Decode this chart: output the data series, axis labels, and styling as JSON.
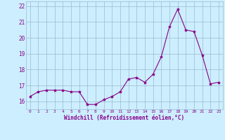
{
  "hours": [
    0,
    1,
    2,
    3,
    4,
    5,
    6,
    7,
    8,
    9,
    10,
    11,
    12,
    13,
    14,
    15,
    16,
    17,
    18,
    19,
    20,
    21,
    22,
    23
  ],
  "values": [
    16.3,
    16.6,
    16.7,
    16.7,
    16.7,
    16.6,
    16.6,
    15.8,
    15.8,
    16.1,
    16.3,
    16.6,
    17.4,
    17.5,
    17.2,
    17.7,
    18.8,
    20.7,
    21.8,
    20.5,
    20.4,
    18.9,
    17.1,
    17.2
  ],
  "ylim": [
    15.5,
    22.3
  ],
  "yticks": [
    16,
    17,
    18,
    19,
    20,
    21,
    22
  ],
  "xtick_labels": [
    "0",
    "1",
    "2",
    "3",
    "4",
    "5",
    "6",
    "7",
    "8",
    "9",
    "10",
    "11",
    "12",
    "13",
    "14",
    "15",
    "16",
    "17",
    "18",
    "19",
    "20",
    "21",
    "22",
    "23"
  ],
  "line_color": "#880088",
  "marker_color": "#880088",
  "bg_color": "#cceeff",
  "grid_color": "#99bbcc",
  "xlabel": "Windchill (Refroidissement éolien,°C)",
  "tick_color": "#880088",
  "xlabel_color": "#880088",
  "figsize": [
    3.2,
    2.0
  ],
  "dpi": 100
}
